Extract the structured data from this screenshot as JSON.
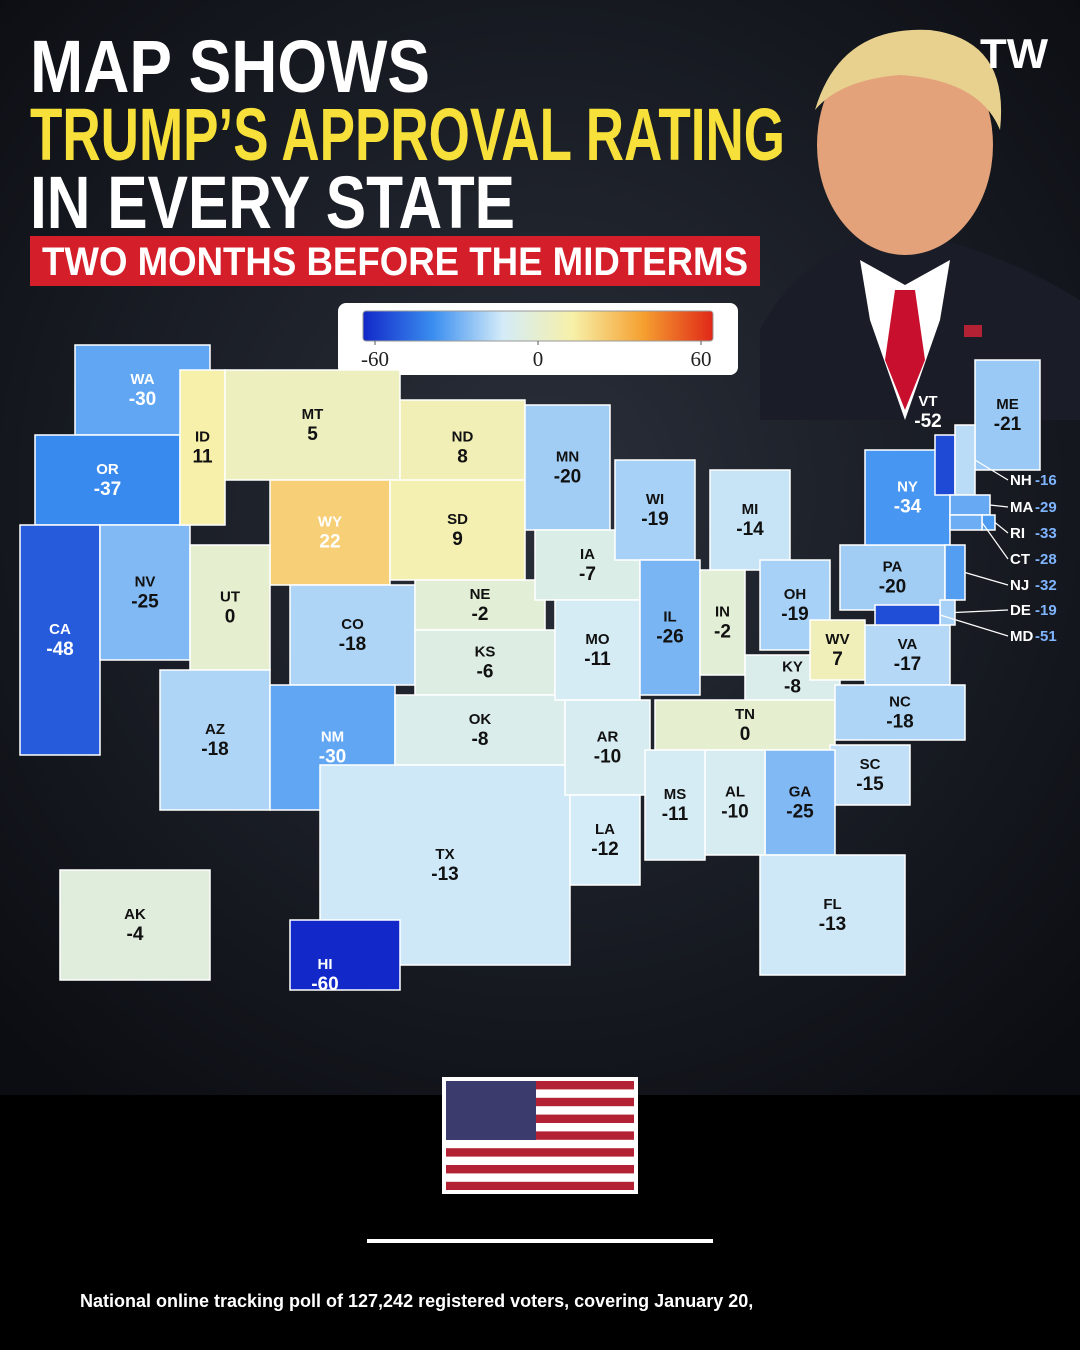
{
  "header": {
    "title_line1": "MAP SHOWS",
    "title_line2": "TRUMP’S APPROVAL RATING",
    "title_line3": "IN EVERY STATE",
    "subtitle": "TWO MONTHS BEFORE THE MIDTERMS",
    "logo": "TW"
  },
  "legend": {
    "range": [
      -60,
      60
    ],
    "ticks": [
      -60,
      0,
      60
    ],
    "colors": [
      "#1228c8",
      "#3a8ef0",
      "#d4ecf8",
      "#f7f0a8",
      "#f5a030",
      "#e02818"
    ]
  },
  "states": [
    {
      "code": "WA",
      "value": -30
    },
    {
      "code": "OR",
      "value": -37
    },
    {
      "code": "CA",
      "value": -48
    },
    {
      "code": "NV",
      "value": -25
    },
    {
      "code": "ID",
      "value": 11
    },
    {
      "code": "MT",
      "value": 5
    },
    {
      "code": "WY",
      "value": 22
    },
    {
      "code": "UT",
      "value": 0
    },
    {
      "code": "CO",
      "value": -18
    },
    {
      "code": "AZ",
      "value": -18
    },
    {
      "code": "NM",
      "value": -30
    },
    {
      "code": "ND",
      "value": 8
    },
    {
      "code": "SD",
      "value": 9
    },
    {
      "code": "NE",
      "value": -2
    },
    {
      "code": "KS",
      "value": -6
    },
    {
      "code": "OK",
      "value": -8
    },
    {
      "code": "TX",
      "value": -13
    },
    {
      "code": "MN",
      "value": -20
    },
    {
      "code": "IA",
      "value": -7
    },
    {
      "code": "MO",
      "value": -11
    },
    {
      "code": "AR",
      "value": -10
    },
    {
      "code": "LA",
      "value": -12
    },
    {
      "code": "WI",
      "value": -19
    },
    {
      "code": "IL",
      "value": -26
    },
    {
      "code": "MI",
      "value": -14
    },
    {
      "code": "IN",
      "value": -2
    },
    {
      "code": "OH",
      "value": -19
    },
    {
      "code": "KY",
      "value": -8
    },
    {
      "code": "WV",
      "value": 7
    },
    {
      "code": "VA",
      "value": -17
    },
    {
      "code": "TN",
      "value": 0
    },
    {
      "code": "NC",
      "value": -18
    },
    {
      "code": "SC",
      "value": -15
    },
    {
      "code": "GA",
      "value": -25
    },
    {
      "code": "AL",
      "value": -10
    },
    {
      "code": "MS",
      "value": -11
    },
    {
      "code": "FL",
      "value": -13
    },
    {
      "code": "PA",
      "value": -20
    },
    {
      "code": "NY",
      "value": -34
    },
    {
      "code": "VT",
      "value": -52
    },
    {
      "code": "ME",
      "value": -21
    },
    {
      "code": "NH",
      "value": -16
    },
    {
      "code": "MA",
      "value": -29
    },
    {
      "code": "RI",
      "value": -33
    },
    {
      "code": "CT",
      "value": -28
    },
    {
      "code": "NJ",
      "value": -32
    },
    {
      "code": "DE",
      "value": -19
    },
    {
      "code": "MD",
      "value": -51
    },
    {
      "code": "AK",
      "value": -4
    },
    {
      "code": "HI",
      "value": -60
    }
  ],
  "footer": {
    "note": "National online tracking poll of 127,242 registered voters, covering January 20,"
  }
}
